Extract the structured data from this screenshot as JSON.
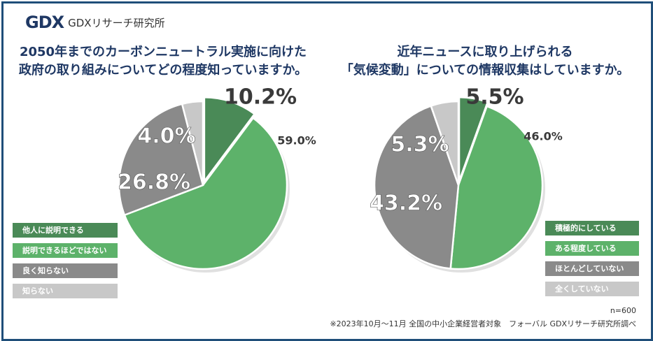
{
  "header": {
    "logo_mark": "GDX",
    "logo_text": "GDXリサーチ研究所"
  },
  "colors": {
    "dark_green": "#4a8a57",
    "light_green": "#5db26a",
    "dark_gray": "#8a8a8a",
    "light_gray": "#c8c8c8",
    "title": "#1f3864",
    "label": "#3a3a3a",
    "border": "#1f4e79"
  },
  "chart_data": [
    {
      "type": "pie",
      "title_line1": "2050年までのカーボンニュートラル実施に向けた",
      "title_line2": "政府の取り組みについてどの程度知っていますか。",
      "categories": [
        "他人に説明できる",
        "説明できるほどではない",
        "良く知らない",
        "知らない"
      ],
      "values": [
        10.2,
        59.0,
        26.8,
        4.0
      ],
      "labels": [
        "10.2%",
        "59.0%",
        "26.8%",
        "4.0%"
      ],
      "legend_position": "bottom-left"
    },
    {
      "type": "pie",
      "title_line1": "近年ニュースに取り上げられる",
      "title_line2": "「気候変動」についての情報収集はしていますか。",
      "categories": [
        "積極的にしている",
        "ある程度している",
        "ほとんどしていない",
        "全くしていない"
      ],
      "values": [
        5.5,
        46.0,
        43.2,
        5.3
      ],
      "labels": [
        "5.5%",
        "46.0%",
        "43.2%",
        "5.3%"
      ],
      "legend_position": "bottom-right"
    }
  ],
  "footer": {
    "n_label": "n=600",
    "source": "※2023年10月～11月 全国の中小企業経営者対象　フォーバル GDXリサーチ研究所調べ"
  }
}
